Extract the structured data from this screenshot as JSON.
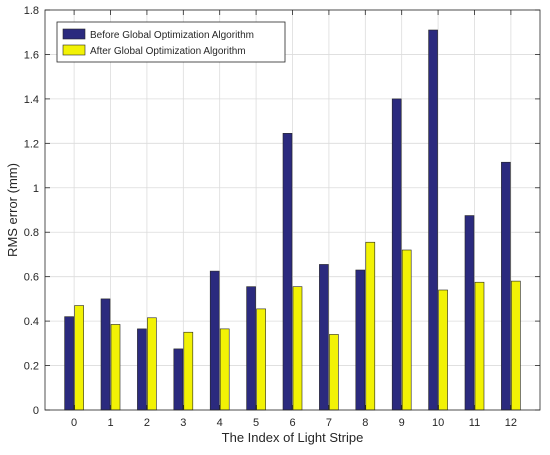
{
  "chart_data": {
    "type": "bar",
    "title": "",
    "xlabel": "The Index of Light Stripe",
    "ylabel": "RMS error (mm)",
    "categories": [
      "0",
      "1",
      "2",
      "3",
      "4",
      "5",
      "6",
      "7",
      "8",
      "9",
      "10",
      "11",
      "12"
    ],
    "ylim": [
      0,
      1.8
    ],
    "yticks": [
      "0",
      "0.2",
      "0.4",
      "0.6",
      "0.8",
      "1",
      "1.2",
      "1.4",
      "1.6",
      "1.8"
    ],
    "grid": true,
    "legend_position": "top-left",
    "series": [
      {
        "name": "Before Global Optimization Algorithm",
        "color": "#2b2a7e",
        "values": [
          0.42,
          0.5,
          0.365,
          0.275,
          0.625,
          0.555,
          1.245,
          0.655,
          0.63,
          1.4,
          1.71,
          0.875,
          1.115
        ]
      },
      {
        "name": "After Global Optimization Algorithm",
        "color": "#f2f205",
        "values": [
          0.47,
          0.385,
          0.415,
          0.35,
          0.365,
          0.455,
          0.555,
          0.34,
          0.755,
          0.72,
          0.54,
          0.575,
          0.58
        ]
      }
    ]
  }
}
